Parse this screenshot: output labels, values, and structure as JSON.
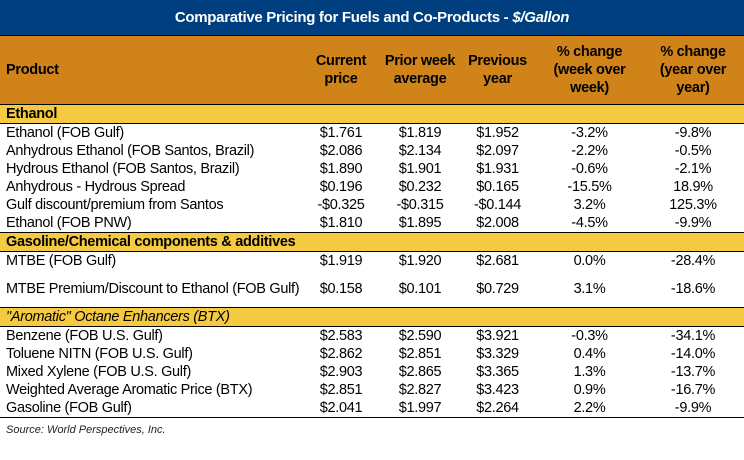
{
  "title": {
    "main": "Comparative Pricing for Fuels and Co-Products -",
    "unit": "$/Gallon"
  },
  "colors": {
    "title_bg": "#003f7f",
    "header_bg": "#d08318",
    "section_bg": "#f5c940"
  },
  "headers": [
    "Product",
    "Current price",
    "Prior week average",
    "Previous year",
    "% change (week over week)",
    "% change (year over year)"
  ],
  "sections": [
    {
      "label": "Ethanol",
      "italic": false,
      "rows": [
        [
          "Ethanol (FOB Gulf)",
          "$1.761",
          "$1.819",
          "$1.952",
          "-3.2%",
          "-9.8%"
        ],
        [
          "Anhydrous Ethanol (FOB Santos, Brazil)",
          "$2.086",
          "$2.134",
          "$2.097",
          "-2.2%",
          "-0.5%"
        ],
        [
          "Hydrous Ethanol (FOB Santos, Brazil)",
          "$1.890",
          "$1.901",
          "$1.931",
          "-0.6%",
          "-2.1%"
        ],
        [
          "Anhydrous - Hydrous Spread",
          "$0.196",
          "$0.232",
          "$0.165",
          "-15.5%",
          "18.9%"
        ],
        [
          "Gulf discount/premium from Santos",
          "-$0.325",
          "-$0.315",
          "-$0.144",
          "3.2%",
          "125.3%"
        ],
        [
          "Ethanol (FOB PNW)",
          "$1.810",
          "$1.895",
          "$2.008",
          "-4.5%",
          "-9.9%"
        ]
      ]
    },
    {
      "label": "Gasoline/Chemical components & additives",
      "italic": false,
      "rows": [
        [
          "MTBE (FOB Gulf)",
          "$1.919",
          "$1.920",
          "$2.681",
          "0.0%",
          "-28.4%"
        ],
        [
          "MTBE Premium/Discount to Ethanol (FOB Gulf)",
          "$0.158",
          "$0.101",
          "$0.729",
          "3.1%",
          "-18.6%"
        ]
      ]
    },
    {
      "label": "\"Aromatic\" Octane Enhancers (BTX)",
      "italic": true,
      "rows": [
        [
          "Benzene (FOB U.S. Gulf)",
          "$2.583",
          "$2.590",
          "$3.921",
          "-0.3%",
          "-34.1%"
        ],
        [
          "Toluene NITN (FOB U.S. Gulf)",
          "$2.862",
          "$2.851",
          "$3.329",
          "0.4%",
          "-14.0%"
        ],
        [
          "Mixed Xylene (FOB U.S. Gulf)",
          "$2.903",
          "$2.865",
          "$3.365",
          "1.3%",
          "-13.7%"
        ],
        [
          "Weighted Average Aromatic Price (BTX)",
          "$2.851",
          "$2.827",
          "$3.423",
          "0.9%",
          "-16.7%"
        ],
        [
          "Gasoline (FOB Gulf)",
          "$2.041",
          "$1.997",
          "$2.264",
          "2.2%",
          "-9.9%"
        ]
      ]
    }
  ],
  "source": "Source: World Perspectives, Inc."
}
